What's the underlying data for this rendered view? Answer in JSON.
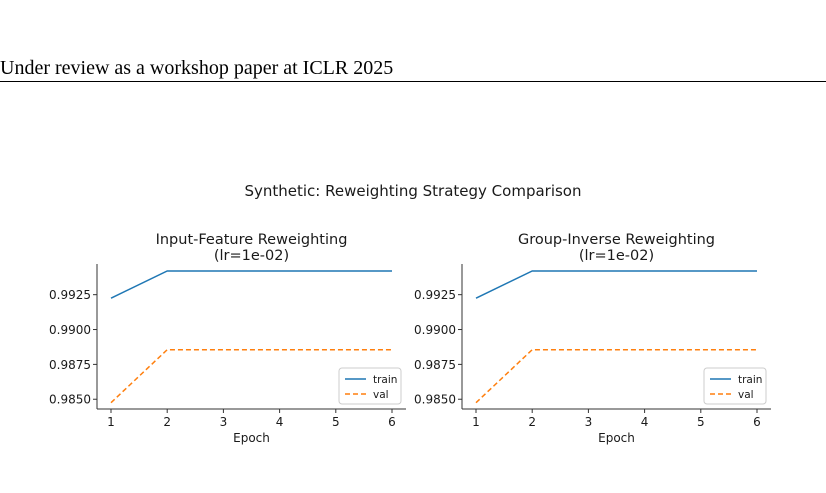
{
  "header": {
    "text": "Under review as a workshop paper at ICLR 2025"
  },
  "figure": {
    "suptitle": "Synthetic: Reweighting Strategy Comparison"
  },
  "chart_data": [
    {
      "type": "line",
      "title": "Input-Feature Reweighting\n(lr=1e-02)",
      "xlabel": "Epoch",
      "ylabel": "",
      "x": [
        1,
        2,
        3,
        4,
        5,
        6
      ],
      "xticks": [
        "1",
        "2",
        "3",
        "4",
        "5",
        "6"
      ],
      "yticks": [
        "0.9850",
        "0.9875",
        "0.9900",
        "0.9925"
      ],
      "ytick_values": [
        0.985,
        0.9875,
        0.99,
        0.9925
      ],
      "ylim": [
        0.9843,
        0.9947
      ],
      "legend": "lower right",
      "series": [
        {
          "name": "train",
          "values": [
            0.99225,
            0.9942,
            0.9942,
            0.9942,
            0.9942,
            0.9942
          ],
          "color": "#1f77b4",
          "style": "solid"
        },
        {
          "name": "val",
          "values": [
            0.98475,
            0.98855,
            0.98855,
            0.98855,
            0.98855,
            0.98855
          ],
          "color": "#ff7f0e",
          "style": "dashed"
        }
      ]
    },
    {
      "type": "line",
      "title": "Group-Inverse Reweighting\n(lr=1e-02)",
      "xlabel": "Epoch",
      "ylabel": "",
      "x": [
        1,
        2,
        3,
        4,
        5,
        6
      ],
      "xticks": [
        "1",
        "2",
        "3",
        "4",
        "5",
        "6"
      ],
      "yticks": [
        "0.9850",
        "0.9875",
        "0.9900",
        "0.9925"
      ],
      "ytick_values": [
        0.985,
        0.9875,
        0.99,
        0.9925
      ],
      "ylim": [
        0.9843,
        0.9947
      ],
      "legend": "lower right",
      "series": [
        {
          "name": "train",
          "values": [
            0.99225,
            0.9942,
            0.9942,
            0.9942,
            0.9942,
            0.9942
          ],
          "color": "#1f77b4",
          "style": "solid"
        },
        {
          "name": "val",
          "values": [
            0.98475,
            0.98855,
            0.98855,
            0.98855,
            0.98855,
            0.98855
          ],
          "color": "#ff7f0e",
          "style": "dashed"
        }
      ]
    }
  ]
}
